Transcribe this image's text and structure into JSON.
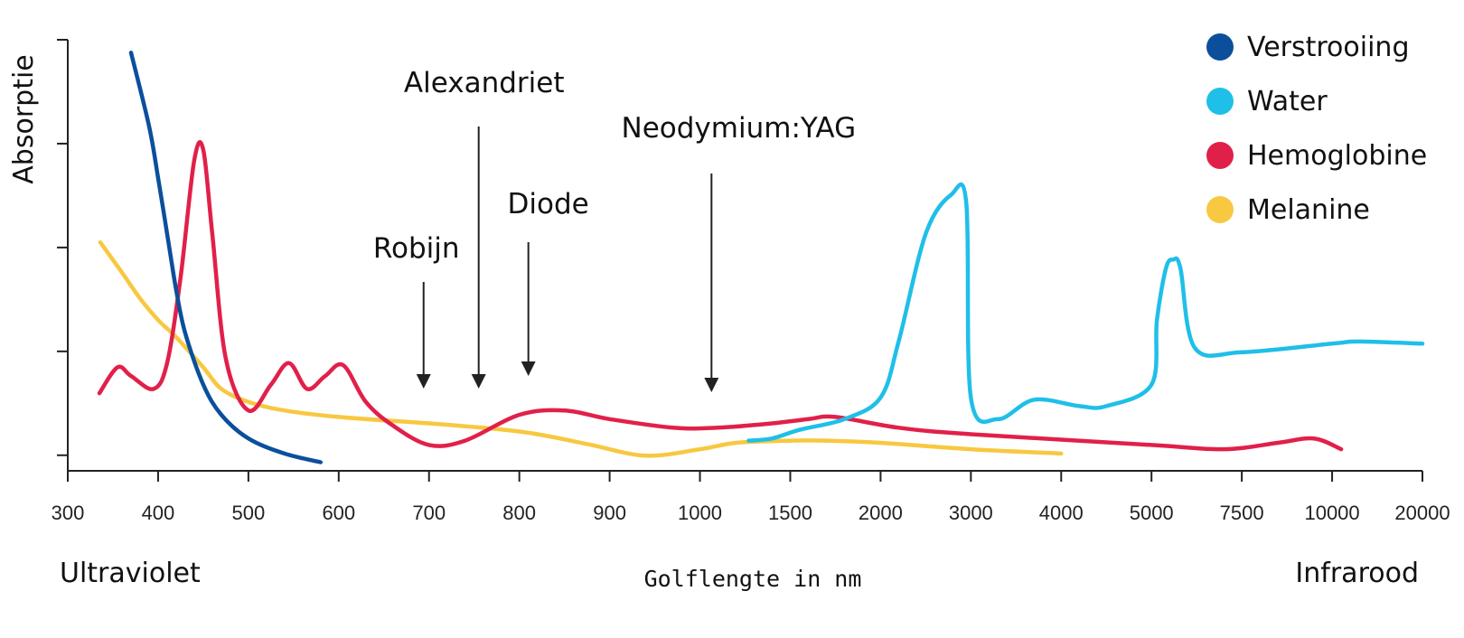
{
  "chart_data": {
    "type": "line",
    "ylabel": "Absorptie",
    "xlabel": "Golflengte in nm",
    "x_ticks": [
      "300",
      "400",
      "500",
      "600",
      "700",
      "800",
      "900",
      "1000",
      "1500",
      "2000",
      "3000",
      "4000",
      "5000",
      "7500",
      "10000",
      "20000"
    ],
    "region_labels": {
      "left": "Ultraviolet",
      "right": "Infrarood"
    },
    "y_ticks_count": 5,
    "legend_position": "top-right",
    "series": [
      {
        "name": "Verstrooiing",
        "color": "#0b4f9c",
        "points": [
          [
            370,
            97
          ],
          [
            390,
            80
          ],
          [
            400,
            68
          ],
          [
            410,
            55
          ],
          [
            420,
            42
          ],
          [
            430,
            32
          ],
          [
            450,
            20
          ],
          [
            470,
            13
          ],
          [
            500,
            7.5
          ],
          [
            540,
            4
          ],
          [
            580,
            2
          ]
        ]
      },
      {
        "name": "Water",
        "color": "#1fbfe8",
        "points": [
          [
            1270,
            7
          ],
          [
            1400,
            7.5
          ],
          [
            1550,
            9.5
          ],
          [
            1800,
            12
          ],
          [
            2000,
            17
          ],
          [
            2200,
            30
          ],
          [
            2500,
            55
          ],
          [
            2780,
            64
          ],
          [
            2950,
            62
          ],
          [
            3000,
            17
          ],
          [
            3300,
            12
          ],
          [
            3700,
            16.5
          ],
          [
            4200,
            15
          ],
          [
            4500,
            15
          ],
          [
            5000,
            20
          ],
          [
            5150,
            35
          ],
          [
            5400,
            47
          ],
          [
            5600,
            49
          ],
          [
            5800,
            47
          ],
          [
            6200,
            28.5
          ],
          [
            7500,
            27.5
          ],
          [
            10000,
            29.5
          ],
          [
            13000,
            30
          ],
          [
            20000,
            29.5
          ]
        ]
      },
      {
        "name": "Hemoglobine",
        "color": "#e1204a",
        "points": [
          [
            335,
            18
          ],
          [
            355,
            24
          ],
          [
            370,
            22
          ],
          [
            395,
            19
          ],
          [
            410,
            25
          ],
          [
            425,
            45
          ],
          [
            440,
            72
          ],
          [
            450,
            74.5
          ],
          [
            460,
            55
          ],
          [
            475,
            26
          ],
          [
            500,
            14
          ],
          [
            525,
            20
          ],
          [
            545,
            25
          ],
          [
            565,
            19
          ],
          [
            585,
            22
          ],
          [
            605,
            24.5
          ],
          [
            630,
            16
          ],
          [
            660,
            10.5
          ],
          [
            700,
            6
          ],
          [
            740,
            7
          ],
          [
            800,
            13
          ],
          [
            850,
            14
          ],
          [
            900,
            12
          ],
          [
            970,
            10
          ],
          [
            1100,
            10
          ],
          [
            1400,
            11
          ],
          [
            1600,
            12
          ],
          [
            1750,
            12.5
          ],
          [
            2200,
            10
          ],
          [
            3000,
            8.5
          ],
          [
            5000,
            6
          ],
          [
            7000,
            5
          ],
          [
            8500,
            6.5
          ],
          [
            9500,
            7.5
          ],
          [
            11000,
            5
          ]
        ]
      },
      {
        "name": "Melanine",
        "color": "#f7c840",
        "points": [
          [
            336,
            53
          ],
          [
            360,
            46
          ],
          [
            380,
            40
          ],
          [
            400,
            35
          ],
          [
            420,
            31
          ],
          [
            450,
            24
          ],
          [
            470,
            19
          ],
          [
            500,
            16
          ],
          [
            540,
            14
          ],
          [
            600,
            12.5
          ],
          [
            700,
            11
          ],
          [
            770,
            9.8
          ],
          [
            820,
            8.5
          ],
          [
            880,
            6
          ],
          [
            940,
            3.5
          ],
          [
            1000,
            5
          ],
          [
            1200,
            6.5
          ],
          [
            1500,
            7
          ],
          [
            1700,
            7
          ],
          [
            2000,
            6.5
          ],
          [
            3000,
            5
          ],
          [
            4000,
            4
          ]
        ]
      }
    ],
    "annotations": [
      {
        "label": "Robijn",
        "wavelength": 694
      },
      {
        "label": "Alexandriet",
        "wavelength": 755
      },
      {
        "label": "Diode",
        "wavelength": 810
      },
      {
        "label": "Neodymium:YAG",
        "wavelength": 1064
      }
    ]
  }
}
